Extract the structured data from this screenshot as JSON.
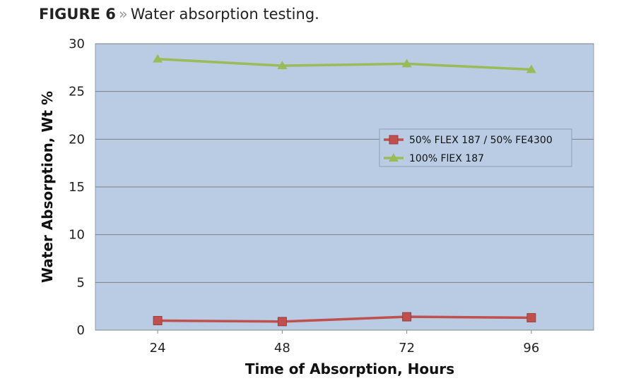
{
  "figure": {
    "label": "FIGURE 6",
    "separator": "»",
    "caption": "Water absorption testing."
  },
  "chart_data": {
    "type": "line",
    "title": "Water absorption testing.",
    "xlabel": "Time of Absorption, Hours",
    "ylabel": "Water Absorption, Wt %",
    "categories": [
      "24",
      "48",
      "72",
      "96"
    ],
    "ylim": [
      0,
      30
    ],
    "yticks": [
      "0",
      "5",
      "10",
      "15",
      "20",
      "25",
      "30"
    ],
    "grid": true,
    "legend_position": "right-middle",
    "series": [
      {
        "name": "50% FLEX 187 / 50% FE4300",
        "values": [
          1.0,
          0.9,
          1.4,
          1.3
        ],
        "color": "#c0504d",
        "marker": "square"
      },
      {
        "name": "100% FlEX 187",
        "values": [
          28.4,
          27.7,
          27.9,
          27.3
        ],
        "color": "#9bbb59",
        "marker": "triangle"
      }
    ],
    "plot_background": "#b9cce4"
  }
}
